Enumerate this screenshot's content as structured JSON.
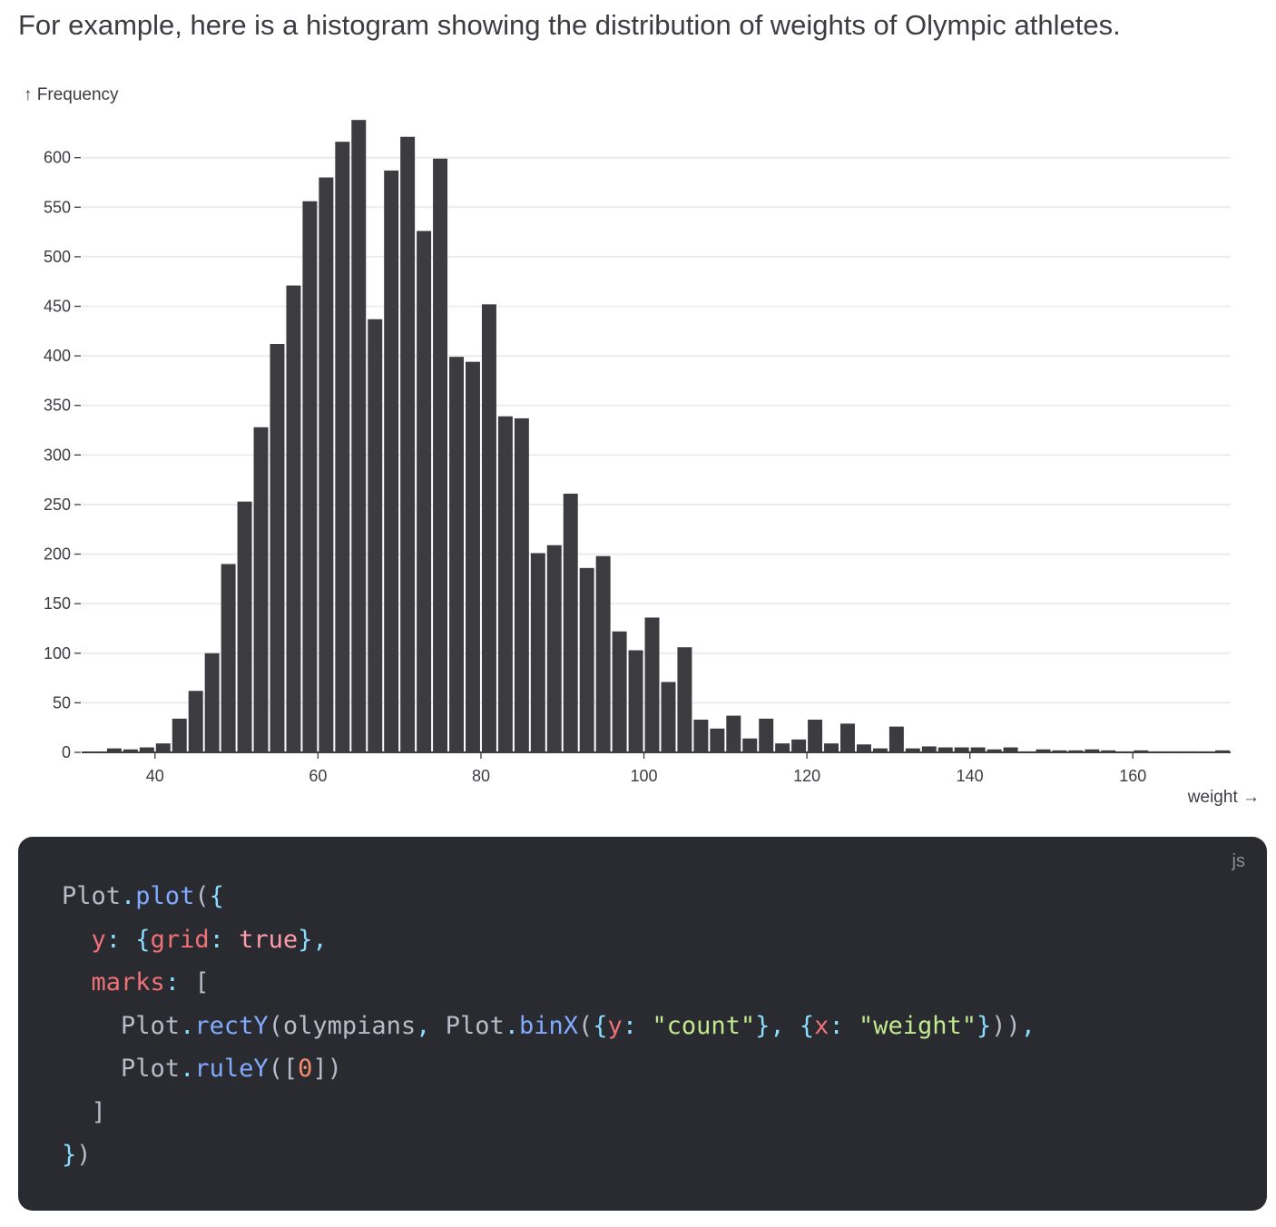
{
  "intro_text": "For example, here is a histogram showing the distribution of weights of Olympic athletes.",
  "chart_data": {
    "type": "bar",
    "title": "",
    "ylabel": "↑ Frequency",
    "xlabel": "weight →",
    "x_ticks": [
      40,
      60,
      80,
      100,
      120,
      140,
      160
    ],
    "y_ticks": [
      0,
      50,
      100,
      150,
      200,
      250,
      300,
      350,
      400,
      450,
      500,
      550,
      600
    ],
    "xlim": [
      31,
      172
    ],
    "ylim": [
      0,
      640
    ],
    "grid_y": true,
    "bar_color": "#3b3b40",
    "bin_width": 2,
    "bins": [
      {
        "x0": 34,
        "x1": 36,
        "y": 4
      },
      {
        "x0": 36,
        "x1": 38,
        "y": 3
      },
      {
        "x0": 38,
        "x1": 40,
        "y": 5
      },
      {
        "x0": 40,
        "x1": 42,
        "y": 9
      },
      {
        "x0": 42,
        "x1": 44,
        "y": 34
      },
      {
        "x0": 44,
        "x1": 46,
        "y": 62
      },
      {
        "x0": 46,
        "x1": 48,
        "y": 100
      },
      {
        "x0": 48,
        "x1": 50,
        "y": 190
      },
      {
        "x0": 50,
        "x1": 52,
        "y": 253
      },
      {
        "x0": 52,
        "x1": 54,
        "y": 328
      },
      {
        "x0": 54,
        "x1": 56,
        "y": 412
      },
      {
        "x0": 56,
        "x1": 58,
        "y": 471
      },
      {
        "x0": 58,
        "x1": 60,
        "y": 556
      },
      {
        "x0": 60,
        "x1": 62,
        "y": 580
      },
      {
        "x0": 62,
        "x1": 64,
        "y": 616
      },
      {
        "x0": 64,
        "x1": 66,
        "y": 638
      },
      {
        "x0": 66,
        "x1": 68,
        "y": 437
      },
      {
        "x0": 68,
        "x1": 70,
        "y": 587
      },
      {
        "x0": 70,
        "x1": 72,
        "y": 621
      },
      {
        "x0": 72,
        "x1": 74,
        "y": 526
      },
      {
        "x0": 74,
        "x1": 76,
        "y": 599
      },
      {
        "x0": 76,
        "x1": 78,
        "y": 399
      },
      {
        "x0": 78,
        "x1": 80,
        "y": 394
      },
      {
        "x0": 80,
        "x1": 82,
        "y": 452
      },
      {
        "x0": 82,
        "x1": 84,
        "y": 339
      },
      {
        "x0": 84,
        "x1": 86,
        "y": 337
      },
      {
        "x0": 86,
        "x1": 88,
        "y": 201
      },
      {
        "x0": 88,
        "x1": 90,
        "y": 209
      },
      {
        "x0": 90,
        "x1": 92,
        "y": 261
      },
      {
        "x0": 92,
        "x1": 94,
        "y": 186
      },
      {
        "x0": 94,
        "x1": 96,
        "y": 198
      },
      {
        "x0": 96,
        "x1": 98,
        "y": 122
      },
      {
        "x0": 98,
        "x1": 100,
        "y": 103
      },
      {
        "x0": 100,
        "x1": 102,
        "y": 136
      },
      {
        "x0": 102,
        "x1": 104,
        "y": 71
      },
      {
        "x0": 104,
        "x1": 106,
        "y": 106
      },
      {
        "x0": 106,
        "x1": 108,
        "y": 33
      },
      {
        "x0": 108,
        "x1": 110,
        "y": 24
      },
      {
        "x0": 110,
        "x1": 112,
        "y": 37
      },
      {
        "x0": 112,
        "x1": 114,
        "y": 14
      },
      {
        "x0": 114,
        "x1": 116,
        "y": 34
      },
      {
        "x0": 116,
        "x1": 118,
        "y": 9
      },
      {
        "x0": 118,
        "x1": 120,
        "y": 13
      },
      {
        "x0": 120,
        "x1": 122,
        "y": 33
      },
      {
        "x0": 122,
        "x1": 124,
        "y": 9
      },
      {
        "x0": 124,
        "x1": 126,
        "y": 29
      },
      {
        "x0": 126,
        "x1": 128,
        "y": 8
      },
      {
        "x0": 128,
        "x1": 130,
        "y": 4
      },
      {
        "x0": 130,
        "x1": 132,
        "y": 26
      },
      {
        "x0": 132,
        "x1": 134,
        "y": 4
      },
      {
        "x0": 134,
        "x1": 136,
        "y": 6
      },
      {
        "x0": 136,
        "x1": 138,
        "y": 5
      },
      {
        "x0": 138,
        "x1": 140,
        "y": 5
      },
      {
        "x0": 140,
        "x1": 142,
        "y": 5
      },
      {
        "x0": 142,
        "x1": 144,
        "y": 3
      },
      {
        "x0": 144,
        "x1": 146,
        "y": 5
      },
      {
        "x0": 146,
        "x1": 148,
        "y": 1
      },
      {
        "x0": 148,
        "x1": 150,
        "y": 3
      },
      {
        "x0": 150,
        "x1": 152,
        "y": 2
      },
      {
        "x0": 152,
        "x1": 154,
        "y": 2
      },
      {
        "x0": 154,
        "x1": 156,
        "y": 3
      },
      {
        "x0": 156,
        "x1": 158,
        "y": 2
      },
      {
        "x0": 158,
        "x1": 160,
        "y": 1
      },
      {
        "x0": 160,
        "x1": 162,
        "y": 2
      },
      {
        "x0": 162,
        "x1": 164,
        "y": 1
      },
      {
        "x0": 164,
        "x1": 166,
        "y": 1
      },
      {
        "x0": 166,
        "x1": 168,
        "y": 1
      },
      {
        "x0": 168,
        "x1": 170,
        "y": 1
      },
      {
        "x0": 170,
        "x1": 172,
        "y": 2
      }
    ]
  },
  "code_block": {
    "language": "js",
    "lines": [
      [
        {
          "t": "Plot",
          "c": "plain"
        },
        {
          "t": ".",
          "c": "punct"
        },
        {
          "t": "plot",
          "c": "func"
        },
        {
          "t": "(",
          "c": "plain"
        },
        {
          "t": "{",
          "c": "punct"
        }
      ],
      [
        {
          "t": "  ",
          "c": "plain"
        },
        {
          "t": "y",
          "c": "prop"
        },
        {
          "t": ": ",
          "c": "punct"
        },
        {
          "t": "{",
          "c": "punct"
        },
        {
          "t": "grid",
          "c": "prop"
        },
        {
          "t": ": ",
          "c": "punct"
        },
        {
          "t": "true",
          "c": "bool"
        },
        {
          "t": "},",
          "c": "punct"
        }
      ],
      [
        {
          "t": "  ",
          "c": "plain"
        },
        {
          "t": "marks",
          "c": "prop"
        },
        {
          "t": ": ",
          "c": "punct"
        },
        {
          "t": "[",
          "c": "plain"
        }
      ],
      [
        {
          "t": "    ",
          "c": "plain"
        },
        {
          "t": "Plot",
          "c": "plain"
        },
        {
          "t": ".",
          "c": "punct"
        },
        {
          "t": "rectY",
          "c": "func"
        },
        {
          "t": "(olympians",
          "c": "plain"
        },
        {
          "t": ", ",
          "c": "punct"
        },
        {
          "t": "Plot",
          "c": "plain"
        },
        {
          "t": ".",
          "c": "punct"
        },
        {
          "t": "binX",
          "c": "func"
        },
        {
          "t": "(",
          "c": "plain"
        },
        {
          "t": "{",
          "c": "punct"
        },
        {
          "t": "y",
          "c": "prop"
        },
        {
          "t": ": ",
          "c": "punct"
        },
        {
          "t": "\"count\"",
          "c": "str"
        },
        {
          "t": "}, ",
          "c": "punct"
        },
        {
          "t": "{",
          "c": "punct"
        },
        {
          "t": "x",
          "c": "prop"
        },
        {
          "t": ": ",
          "c": "punct"
        },
        {
          "t": "\"weight\"",
          "c": "str"
        },
        {
          "t": "}",
          "c": "punct"
        },
        {
          "t": "))",
          "c": "plain"
        },
        {
          "t": ",",
          "c": "punct"
        }
      ],
      [
        {
          "t": "    ",
          "c": "plain"
        },
        {
          "t": "Plot",
          "c": "plain"
        },
        {
          "t": ".",
          "c": "punct"
        },
        {
          "t": "ruleY",
          "c": "func"
        },
        {
          "t": "([",
          "c": "plain"
        },
        {
          "t": "0",
          "c": "num"
        },
        {
          "t": "])",
          "c": "plain"
        }
      ],
      [
        {
          "t": "  ",
          "c": "plain"
        },
        {
          "t": "]",
          "c": "plain"
        }
      ],
      [
        {
          "t": "}",
          "c": "punct"
        },
        {
          "t": ")",
          "c": "plain"
        }
      ]
    ]
  }
}
